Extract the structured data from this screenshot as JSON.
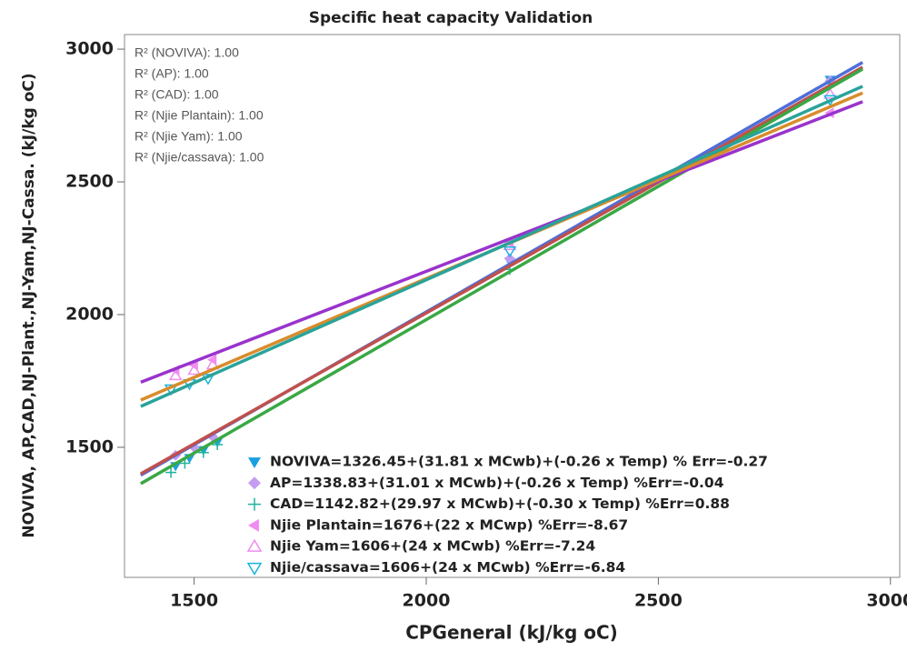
{
  "chart_data": {
    "type": "scatter",
    "title": "Specific heat capacity Validation",
    "xlabel": "CPGeneral (kJ/kg oC)",
    "ylabel": "NOVIVA, AP,CAD,NJ-Plant.,NJ-Yam,NJ-Cassa. (kJ/kg oC)",
    "xlim": [
      1350,
      3020
    ],
    "ylim": [
      1010,
      3055
    ],
    "xticks": [
      1500,
      2000,
      2500,
      3000
    ],
    "yticks": [
      1500,
      2000,
      2500,
      3000
    ],
    "annotations": [
      "R² (NOVIVA): 1.00",
      "R² (AP): 1.00",
      "R² (CAD): 1.00",
      "R² (Njie Plantain): 1.00",
      "R² (Njie Yam): 1.00",
      "R² (Njie/cassava): 1.00"
    ],
    "series": [
      {
        "name": "NOVIVA=1326.45+(31.81 x MCwb)+(-0.26 x Temp) % Err=-0.27",
        "color": "#1a9fe0",
        "marker": "triangle-down",
        "line_color": "#4f6fd8",
        "x": [
          1460,
          1490,
          1520,
          1550,
          2180,
          2870
        ],
        "values": [
          1430,
          1460,
          1490,
          1520,
          2200,
          2885
        ],
        "fit": {
          "x": [
            1385,
            2940
          ],
          "y": [
            1395,
            2950
          ]
        }
      },
      {
        "name": "AP=1338.83+(31.01 x MCwb)+(-0.26 x Temp) %Err=-0.04",
        "color": "#c49cf0",
        "marker": "diamond",
        "line_color": "#c0504d",
        "x": [
          1460,
          1500,
          1540,
          2180,
          2870
        ],
        "values": [
          1470,
          1500,
          1540,
          2210,
          2880
        ],
        "fit": {
          "x": [
            1385,
            2940
          ],
          "y": [
            1400,
            2932
          ]
        }
      },
      {
        "name": "CAD=1142.82+(29.97 x MCwb)+(-0.30 x Temp) %Err=0.88",
        "color": "#1fb3a0",
        "marker": "plus",
        "line_color": "#3aa845",
        "x": [
          1450,
          1480,
          1520,
          1550,
          2180,
          2870
        ],
        "values": [
          1405,
          1440,
          1480,
          1510,
          2170,
          2870
        ],
        "fit": {
          "x": [
            1385,
            2940
          ],
          "y": [
            1363,
            2925
          ]
        }
      },
      {
        "name": "Njie Plantain=1676+(22 x MCwp) %Err=-8.67",
        "color": "#f08cf0",
        "marker": "triangle-left",
        "line_color": "#9933cc",
        "x": [
          1460,
          1500,
          1540,
          2180,
          2870
        ],
        "values": [
          1790,
          1810,
          1830,
          2270,
          2760
        ],
        "fit": {
          "x": [
            1385,
            2940
          ],
          "y": [
            1745,
            2802
          ]
        }
      },
      {
        "name": "Njie Yam=1606+(24 x MCwb) %Err=-7.24",
        "color": "#f08cf0",
        "marker": "triangle-up-open",
        "line_color": "#d98c2b",
        "x": [
          1460,
          1500,
          1540,
          2180,
          2870
        ],
        "values": [
          1770,
          1790,
          1810,
          2260,
          2830
        ],
        "fit": {
          "x": [
            1385,
            2940
          ],
          "y": [
            1678,
            2835
          ]
        }
      },
      {
        "name": "Njie/cassava=1606+(24 x MCwb) %Err=-6.84",
        "color": "#1ab3e0",
        "marker": "triangle-down-open",
        "line_color": "#2aa39a",
        "x": [
          1450,
          1490,
          1530,
          2180,
          2870
        ],
        "values": [
          1720,
          1740,
          1760,
          2240,
          2810
        ],
        "fit": {
          "x": [
            1385,
            2940
          ],
          "y": [
            1654,
            2860
          ]
        }
      }
    ]
  }
}
